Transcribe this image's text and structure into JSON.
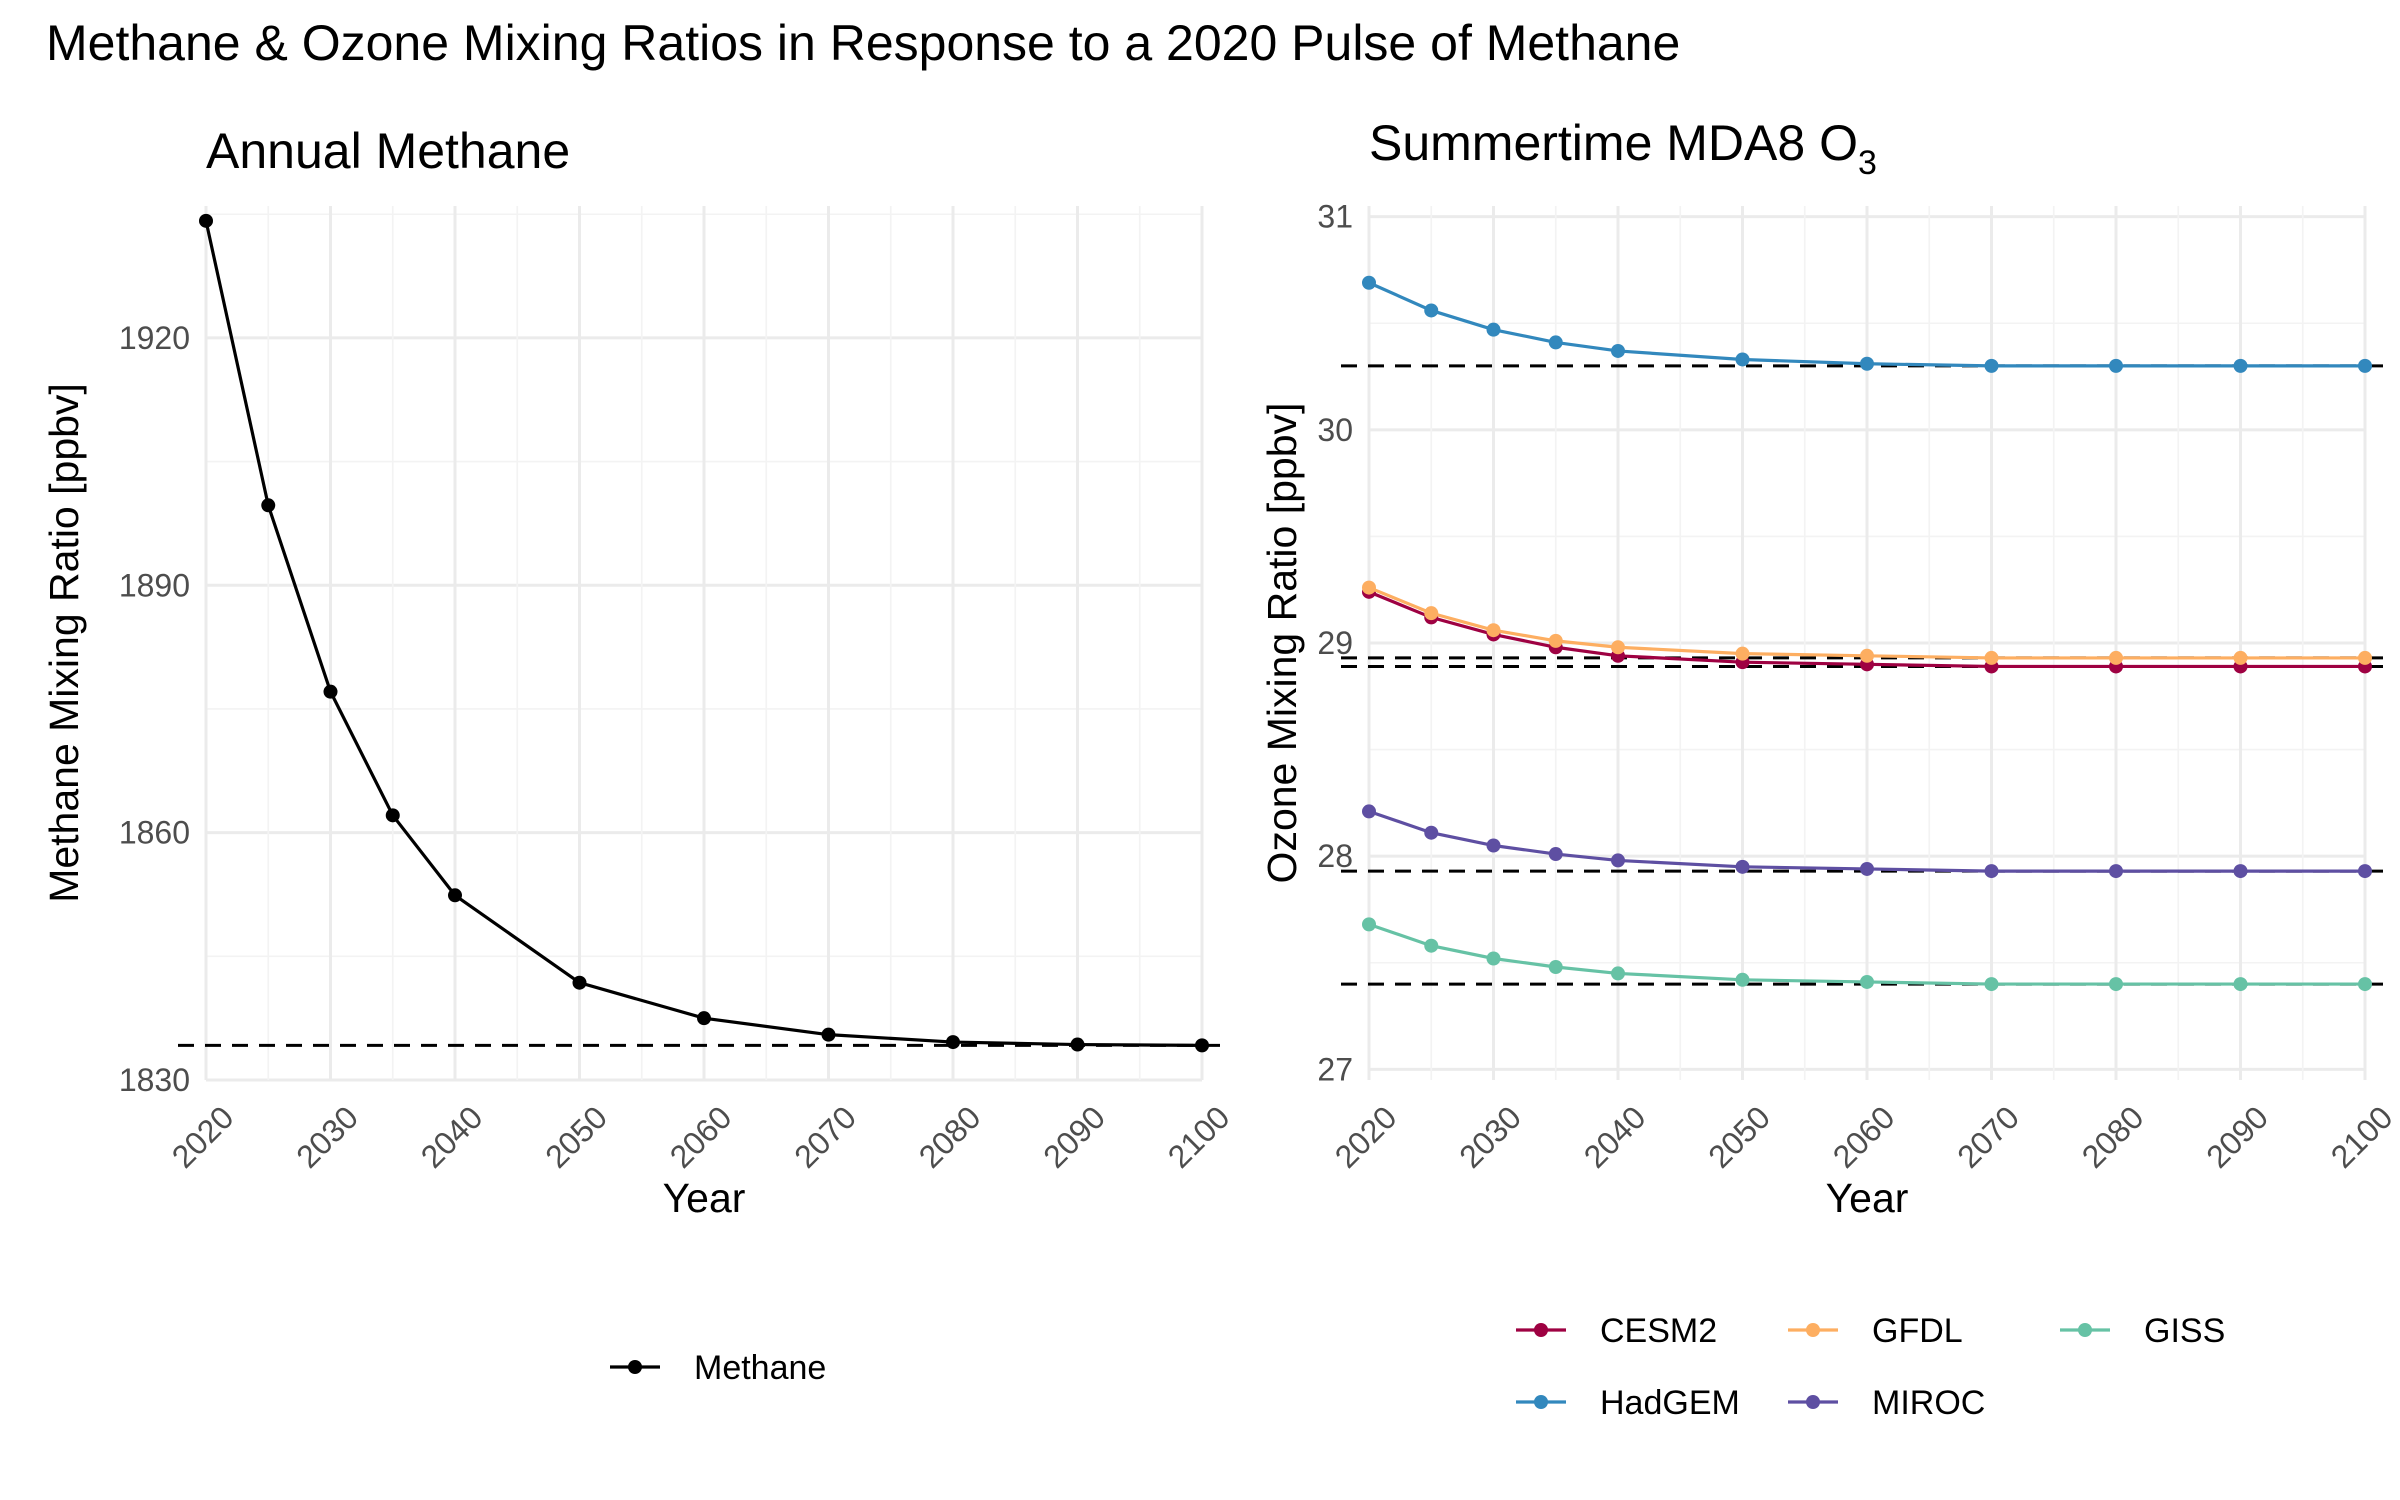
{
  "title": "Methane & Ozone Mixing Ratios in Response to a 2020 Pulse of Methane",
  "chart_data": [
    {
      "type": "line",
      "title": "Annual Methane",
      "xlabel": "Year",
      "ylabel": "Methane Mixing Ratio [ppbv]",
      "x_ticks": [
        "2020",
        "2030",
        "2040",
        "2050",
        "2060",
        "2070",
        "2080",
        "2090",
        "2100"
      ],
      "y_ticks": [
        "1830",
        "1860",
        "1890",
        "1920"
      ],
      "xlim": [
        2020,
        2100
      ],
      "ylim": [
        1830,
        1936
      ],
      "x": [
        2020,
        2025,
        2030,
        2035,
        2040,
        2050,
        2060,
        2070,
        2080,
        2090,
        2100
      ],
      "series": [
        {
          "name": "Methane",
          "color": "#000000",
          "values": [
            1934.2,
            1899.7,
            1877.1,
            1862.1,
            1852.4,
            1841.8,
            1837.5,
            1835.5,
            1834.6,
            1834.3,
            1834.2
          ]
        }
      ],
      "reference_lines": [
        {
          "y": 1834.2,
          "style": "dashed"
        }
      ],
      "grid": true,
      "legend_position": "bottom"
    },
    {
      "type": "line",
      "title": "Summertime MDA8 O",
      "title_subscript": "3",
      "xlabel": "Year",
      "ylabel": "Ozone Mixing Ratio [ppbv]",
      "x_ticks": [
        "2020",
        "2030",
        "2040",
        "2050",
        "2060",
        "2070",
        "2080",
        "2090",
        "2100"
      ],
      "y_ticks": [
        "27",
        "28",
        "29",
        "30",
        "31"
      ],
      "xlim": [
        2020,
        2100
      ],
      "ylim": [
        26.95,
        31.05
      ],
      "x": [
        2020,
        2025,
        2030,
        2035,
        2040,
        2050,
        2060,
        2070,
        2080,
        2090,
        2100
      ],
      "series": [
        {
          "name": "CESM2",
          "color": "#9e0142",
          "values": [
            29.24,
            29.12,
            29.04,
            28.98,
            28.94,
            28.91,
            28.9,
            28.89,
            28.89,
            28.89,
            28.89
          ]
        },
        {
          "name": "GFDL",
          "color": "#fdae61",
          "values": [
            29.26,
            29.14,
            29.06,
            29.01,
            28.98,
            28.95,
            28.94,
            28.93,
            28.93,
            28.93,
            28.93
          ]
        },
        {
          "name": "GISS",
          "color": "#66c2a5",
          "values": [
            27.68,
            27.58,
            27.52,
            27.48,
            27.45,
            27.42,
            27.41,
            27.4,
            27.4,
            27.4,
            27.4
          ]
        },
        {
          "name": "HadGEM",
          "color": "#3288bd",
          "values": [
            30.69,
            30.56,
            30.47,
            30.41,
            30.37,
            30.33,
            30.31,
            30.3,
            30.3,
            30.3,
            30.3
          ]
        },
        {
          "name": "MIROC",
          "color": "#5e4fa2",
          "values": [
            28.21,
            28.11,
            28.05,
            28.01,
            27.98,
            27.95,
            27.94,
            27.93,
            27.93,
            27.93,
            27.93
          ]
        }
      ],
      "reference_lines": [
        {
          "y": 30.3,
          "style": "dashed"
        },
        {
          "y": 28.93,
          "style": "dashed"
        },
        {
          "y": 28.89,
          "style": "dashed"
        },
        {
          "y": 27.93,
          "style": "dashed"
        },
        {
          "y": 27.4,
          "style": "dashed"
        }
      ],
      "grid": true,
      "legend_position": "bottom"
    }
  ]
}
